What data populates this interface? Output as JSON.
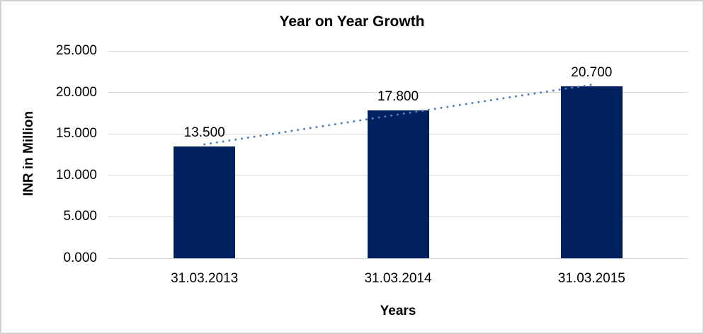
{
  "chart": {
    "title": "Year on Year Growth",
    "y_axis_title": "INR in Million",
    "x_axis_title": "Years"
  },
  "chart_data": {
    "type": "bar",
    "title": "Year on Year Growth",
    "categories": [
      "31.03.2013",
      "31.03.2014",
      "31.03.2015"
    ],
    "values": [
      13.5,
      17.8,
      20.7
    ],
    "data_labels": [
      "13.500",
      "17.800",
      "20.700"
    ],
    "xlabel": "Years",
    "ylabel": "INR in Million",
    "ylim": [
      0,
      25
    ],
    "ytick_step": 5,
    "ytick_labels": [
      "0.000",
      "5.000",
      "10.000",
      "15.000",
      "20.000",
      "25.000"
    ],
    "grid": true,
    "legend": false,
    "trendline": {
      "type": "linear",
      "style": "dotted"
    },
    "colors": {
      "bar": "#002060",
      "trendline": "#4f81bd",
      "gridline": "#d9d9d9",
      "text": "#000000",
      "frame_border": "#d2d2d2"
    }
  }
}
